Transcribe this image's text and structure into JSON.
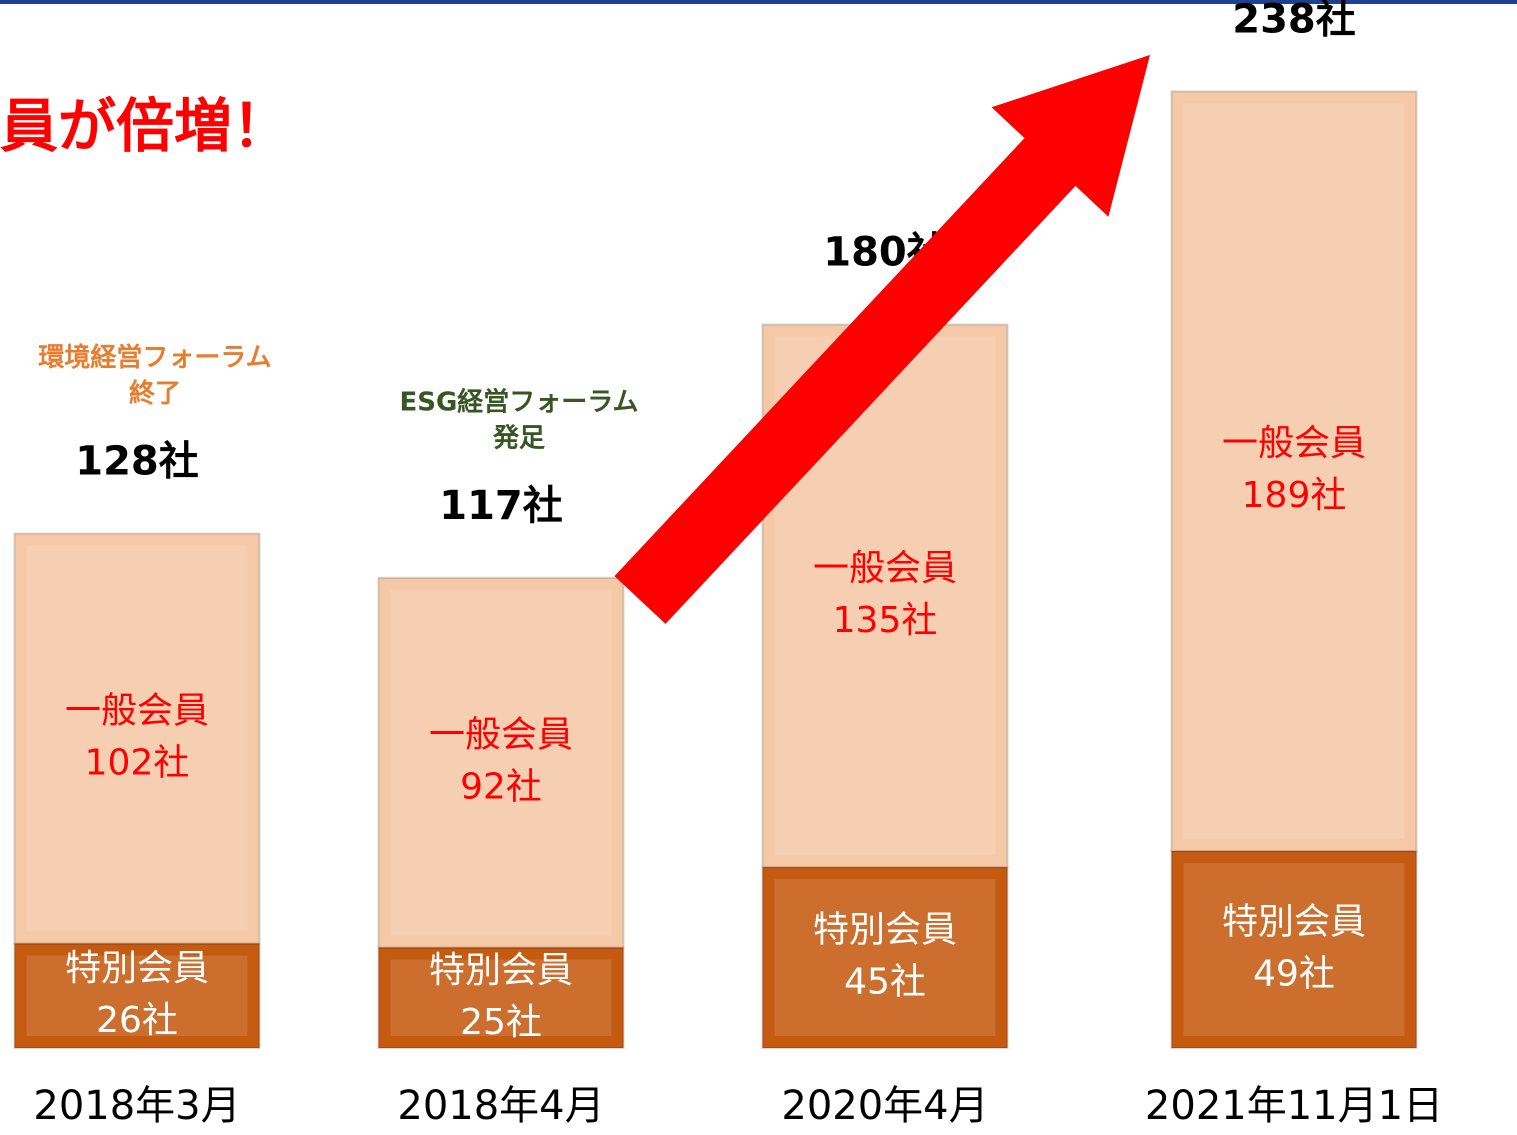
{
  "chart_data": {
    "type": "stacked_bar",
    "title": "員が倍増！",
    "categories": [
      "2018年3月",
      "2018年4月",
      "2020年4月",
      "2021年11月1日"
    ],
    "series": [
      {
        "name": "特別会員",
        "color": "#c55a11",
        "label_color": "#ffffff",
        "values": [
          26,
          25,
          45,
          49
        ],
        "value_labels": [
          "26社",
          "25社",
          "45社",
          "49社"
        ]
      },
      {
        "name": "一般会員",
        "color": "#f5c9a8",
        "label_color": "#ff0000",
        "values": [
          102,
          92,
          135,
          189
        ],
        "value_labels": [
          "102社",
          "92社",
          "135社",
          "189社"
        ]
      }
    ],
    "total_labels": [
      "128社",
      "117社",
      "180社",
      "238社"
    ],
    "annotations": [
      {
        "category": 0,
        "lines": [
          "環境経営フォーラム",
          "終了"
        ],
        "color": "#e87d2e"
      },
      {
        "category": 1,
        "lines": [
          "ESG経営フォーラム",
          "発足"
        ],
        "color": "#375623"
      }
    ],
    "ylim": [
      0,
      260
    ]
  }
}
